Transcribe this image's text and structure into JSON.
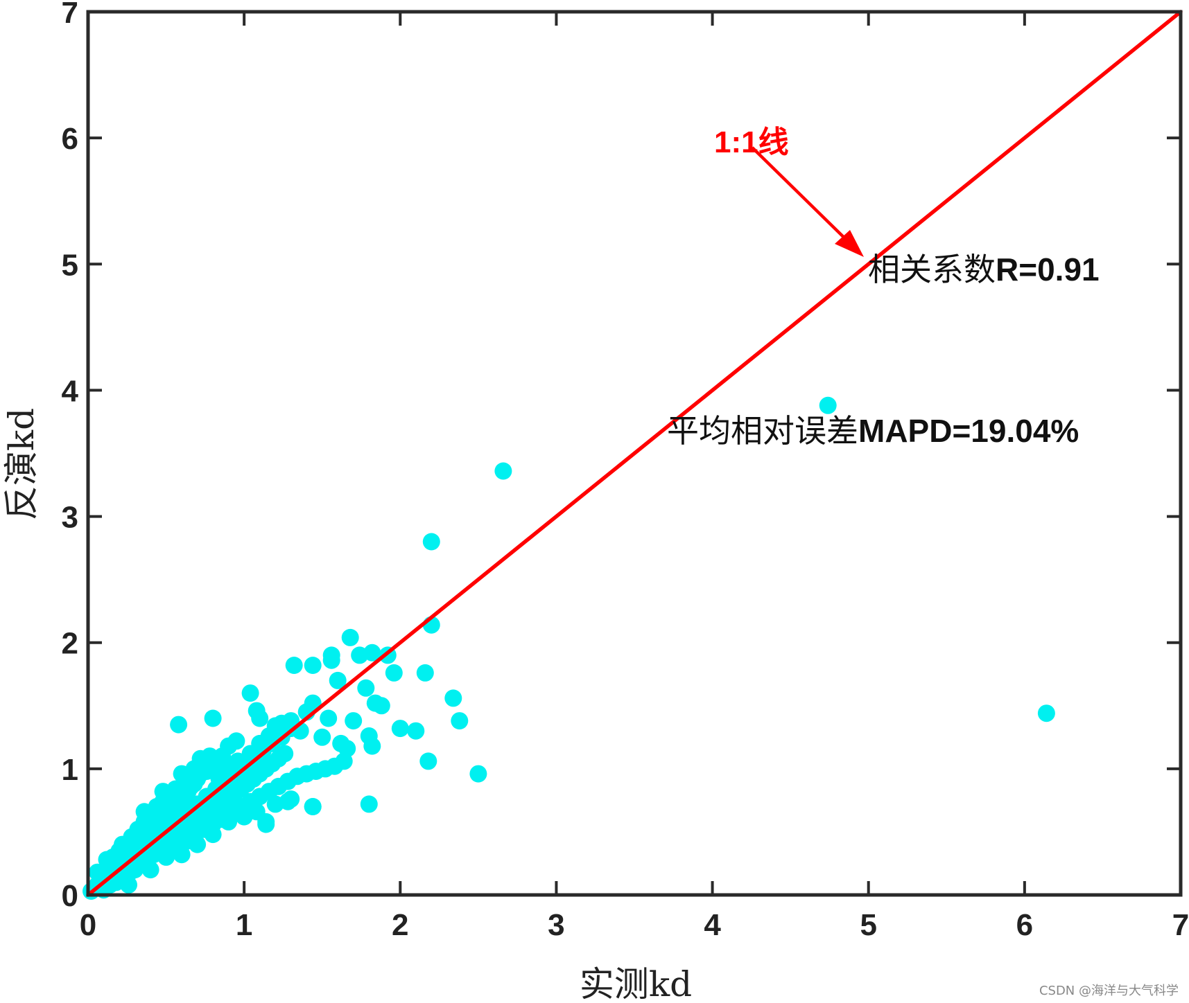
{
  "chart_data": {
    "type": "scatter",
    "xlabel": "实测kd",
    "ylabel": "反演kd",
    "xlim": [
      0,
      7
    ],
    "ylim": [
      0,
      7
    ],
    "xticks": [
      "0",
      "1",
      "2",
      "3",
      "4",
      "5",
      "6",
      "7"
    ],
    "yticks": [
      "0",
      "1",
      "2",
      "3",
      "4",
      "5",
      "6",
      "7"
    ],
    "grid": false,
    "point_color": "#00f0f0",
    "line_color": "#ff0000",
    "reference_line": {
      "x": [
        0,
        7
      ],
      "y": [
        0,
        7
      ],
      "label": "1:1线"
    },
    "annotations": {
      "r_prefix": "相关系数",
      "r_value": "R=0.91",
      "mapd_prefix": "平均相对误差",
      "mapd_value": "MAPD=19.04%"
    },
    "points": [
      [
        0.02,
        0.03
      ],
      [
        0.04,
        0.05
      ],
      [
        0.06,
        0.08
      ],
      [
        0.08,
        0.1
      ],
      [
        0.1,
        0.12
      ],
      [
        0.12,
        0.15
      ],
      [
        0.14,
        0.2
      ],
      [
        0.16,
        0.18
      ],
      [
        0.18,
        0.22
      ],
      [
        0.2,
        0.25
      ],
      [
        0.22,
        0.28
      ],
      [
        0.24,
        0.3
      ],
      [
        0.26,
        0.32
      ],
      [
        0.28,
        0.36
      ],
      [
        0.3,
        0.38
      ],
      [
        0.32,
        0.4
      ],
      [
        0.34,
        0.44
      ],
      [
        0.36,
        0.46
      ],
      [
        0.38,
        0.48
      ],
      [
        0.4,
        0.5
      ],
      [
        0.42,
        0.53
      ],
      [
        0.44,
        0.56
      ],
      [
        0.46,
        0.58
      ],
      [
        0.48,
        0.6
      ],
      [
        0.5,
        0.62
      ],
      [
        0.52,
        0.66
      ],
      [
        0.54,
        0.68
      ],
      [
        0.56,
        0.72
      ],
      [
        0.58,
        0.74
      ],
      [
        0.6,
        0.76
      ],
      [
        0.62,
        0.8
      ],
      [
        0.64,
        0.82
      ],
      [
        0.66,
        0.86
      ],
      [
        0.68,
        0.88
      ],
      [
        0.7,
        0.92
      ],
      [
        0.72,
        0.96
      ],
      [
        0.74,
        1.0
      ],
      [
        0.76,
        1.05
      ],
      [
        0.78,
        1.1
      ],
      [
        0.8,
        1.08
      ],
      [
        0.12,
        0.28
      ],
      [
        0.16,
        0.3
      ],
      [
        0.2,
        0.35
      ],
      [
        0.24,
        0.4
      ],
      [
        0.28,
        0.46
      ],
      [
        0.32,
        0.52
      ],
      [
        0.36,
        0.58
      ],
      [
        0.4,
        0.64
      ],
      [
        0.44,
        0.7
      ],
      [
        0.48,
        0.74
      ],
      [
        0.52,
        0.8
      ],
      [
        0.56,
        0.84
      ],
      [
        0.6,
        0.96
      ],
      [
        0.64,
        0.92
      ],
      [
        0.68,
        1.0
      ],
      [
        0.72,
        1.08
      ],
      [
        0.76,
        0.98
      ],
      [
        0.82,
        1.02
      ],
      [
        0.86,
        1.1
      ],
      [
        0.9,
        1.18
      ],
      [
        0.1,
        0.04
      ],
      [
        0.14,
        0.08
      ],
      [
        0.18,
        0.1
      ],
      [
        0.22,
        0.14
      ],
      [
        0.26,
        0.17
      ],
      [
        0.3,
        0.2
      ],
      [
        0.34,
        0.24
      ],
      [
        0.38,
        0.28
      ],
      [
        0.42,
        0.32
      ],
      [
        0.46,
        0.36
      ],
      [
        0.5,
        0.4
      ],
      [
        0.54,
        0.43
      ],
      [
        0.58,
        0.46
      ],
      [
        0.62,
        0.5
      ],
      [
        0.66,
        0.53
      ],
      [
        0.7,
        0.56
      ],
      [
        0.74,
        0.6
      ],
      [
        0.78,
        0.64
      ],
      [
        0.82,
        0.68
      ],
      [
        0.86,
        0.72
      ],
      [
        0.9,
        0.76
      ],
      [
        0.94,
        0.8
      ],
      [
        0.98,
        0.84
      ],
      [
        1.02,
        0.88
      ],
      [
        1.06,
        0.92
      ],
      [
        1.1,
        0.96
      ],
      [
        1.14,
        1.0
      ],
      [
        1.18,
        1.04
      ],
      [
        1.22,
        1.08
      ],
      [
        1.26,
        1.12
      ],
      [
        0.3,
        0.3
      ],
      [
        0.34,
        0.36
      ],
      [
        0.4,
        0.42
      ],
      [
        0.46,
        0.48
      ],
      [
        0.52,
        0.55
      ],
      [
        0.58,
        0.6
      ],
      [
        0.64,
        0.66
      ],
      [
        0.7,
        0.72
      ],
      [
        0.76,
        0.78
      ],
      [
        0.82,
        0.84
      ],
      [
        0.88,
        0.9
      ],
      [
        0.94,
        0.96
      ],
      [
        1.0,
        1.02
      ],
      [
        1.06,
        1.08
      ],
      [
        1.12,
        1.14
      ],
      [
        1.18,
        1.2
      ],
      [
        1.24,
        1.25
      ],
      [
        1.3,
        1.32
      ],
      [
        0.84,
        0.92
      ],
      [
        0.92,
        1.0
      ],
      [
        0.6,
        0.58
      ],
      [
        0.66,
        0.62
      ],
      [
        0.72,
        0.68
      ],
      [
        0.78,
        0.74
      ],
      [
        0.84,
        0.78
      ],
      [
        0.9,
        0.84
      ],
      [
        0.96,
        0.9
      ],
      [
        1.02,
        0.95
      ],
      [
        1.08,
        1.0
      ],
      [
        1.14,
        1.05
      ],
      [
        0.5,
        0.3
      ],
      [
        0.56,
        0.36
      ],
      [
        0.62,
        0.42
      ],
      [
        0.68,
        0.46
      ],
      [
        0.74,
        0.52
      ],
      [
        0.8,
        0.56
      ],
      [
        0.86,
        0.6
      ],
      [
        0.92,
        0.64
      ],
      [
        0.98,
        0.7
      ],
      [
        1.04,
        0.74
      ],
      [
        1.1,
        0.78
      ],
      [
        1.16,
        0.82
      ],
      [
        1.22,
        0.86
      ],
      [
        1.28,
        0.9
      ],
      [
        1.34,
        0.94
      ],
      [
        1.4,
        0.96
      ],
      [
        1.46,
        0.98
      ],
      [
        1.52,
        1.0
      ],
      [
        1.58,
        1.02
      ],
      [
        1.64,
        1.06
      ],
      [
        0.26,
        0.08
      ],
      [
        0.4,
        0.2
      ],
      [
        0.6,
        0.32
      ],
      [
        0.7,
        0.4
      ],
      [
        0.8,
        0.48
      ],
      [
        0.9,
        0.58
      ],
      [
        1.0,
        0.62
      ],
      [
        1.08,
        0.66
      ],
      [
        1.14,
        0.56
      ],
      [
        1.2,
        0.72
      ],
      [
        1.3,
        0.76
      ],
      [
        1.28,
        0.74
      ],
      [
        1.44,
        0.7
      ],
      [
        0.88,
        0.96
      ],
      [
        0.96,
        1.06
      ],
      [
        1.04,
        1.12
      ],
      [
        1.1,
        1.2
      ],
      [
        1.16,
        1.26
      ],
      [
        1.2,
        1.3
      ],
      [
        1.24,
        1.36
      ],
      [
        0.58,
        1.35
      ],
      [
        0.8,
        1.4
      ],
      [
        0.95,
        1.22
      ],
      [
        1.04,
        1.6
      ],
      [
        1.08,
        1.46
      ],
      [
        1.1,
        1.4
      ],
      [
        1.2,
        1.34
      ],
      [
        1.3,
        1.38
      ],
      [
        1.36,
        1.3
      ],
      [
        1.4,
        1.45
      ],
      [
        1.44,
        1.52
      ],
      [
        1.5,
        1.25
      ],
      [
        1.54,
        1.4
      ],
      [
        1.6,
        1.7
      ],
      [
        1.62,
        1.2
      ],
      [
        1.66,
        1.16
      ],
      [
        1.7,
        1.38
      ],
      [
        1.74,
        1.9
      ],
      [
        1.78,
        1.64
      ],
      [
        1.8,
        1.26
      ],
      [
        1.82,
        1.18
      ],
      [
        1.84,
        1.52
      ],
      [
        1.88,
        1.5
      ],
      [
        1.92,
        1.9
      ],
      [
        1.96,
        1.76
      ],
      [
        2.0,
        1.32
      ],
      [
        2.1,
        1.3
      ],
      [
        2.16,
        1.76
      ],
      [
        2.18,
        1.06
      ],
      [
        2.34,
        1.56
      ],
      [
        2.38,
        1.38
      ],
      [
        2.5,
        0.96
      ],
      [
        1.32,
        1.82
      ],
      [
        1.44,
        1.82
      ],
      [
        1.56,
        1.86
      ],
      [
        1.56,
        1.9
      ],
      [
        1.68,
        2.04
      ],
      [
        1.82,
        1.92
      ],
      [
        1.8,
        0.72
      ],
      [
        1.44,
        0.7
      ],
      [
        1.14,
        0.58
      ],
      [
        2.2,
        2.14
      ],
      [
        2.2,
        2.8
      ],
      [
        2.66,
        3.36
      ],
      [
        4.74,
        3.88
      ],
      [
        6.14,
        1.44
      ],
      [
        0.06,
        0.18
      ],
      [
        0.22,
        0.4
      ],
      [
        0.36,
        0.66
      ],
      [
        0.48,
        0.82
      ]
    ]
  },
  "watermark": "CSDN @海洋与大气科学"
}
